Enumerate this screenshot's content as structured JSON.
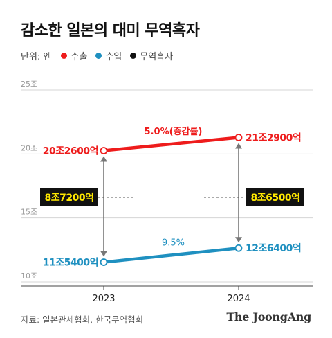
{
  "title": "감소한 일본의 대미 무역흑자",
  "legend": {
    "unit_label": "단위: 엔",
    "items": [
      {
        "label": "수출",
        "color": "#ee1c1c"
      },
      {
        "label": "수입",
        "color": "#1f90c0"
      },
      {
        "label": "무역흑자",
        "color": "#111111"
      }
    ]
  },
  "source": "자료: 일본관세협회, 한국무역협회",
  "brand": "The JoongAng",
  "chart_data": {
    "type": "line",
    "x": [
      "2023",
      "2024"
    ],
    "ylim": [
      10,
      25
    ],
    "yticks": [
      {
        "value": 10,
        "label": "10조"
      },
      {
        "value": 15,
        "label": "15조"
      },
      {
        "value": 20,
        "label": "20조"
      },
      {
        "value": 25,
        "label": "25조"
      }
    ],
    "grid": true,
    "series": [
      {
        "name": "수출",
        "color": "#ee1c1c",
        "values": [
          20.26,
          21.29
        ],
        "labels": [
          "20조2600억",
          "21조2900억"
        ],
        "growth_label": "5.0%(증감률)"
      },
      {
        "name": "수입",
        "color": "#1f90c0",
        "values": [
          11.54,
          12.64
        ],
        "labels": [
          "11조5400억",
          "12조6400억"
        ],
        "growth_label": "9.5%"
      }
    ],
    "surplus": {
      "name": "무역흑자",
      "color": "#111111",
      "badge_color": "#ffe800",
      "values": [
        8.72,
        8.65
      ],
      "labels": [
        "8조7200억",
        "8조6500억"
      ]
    }
  }
}
